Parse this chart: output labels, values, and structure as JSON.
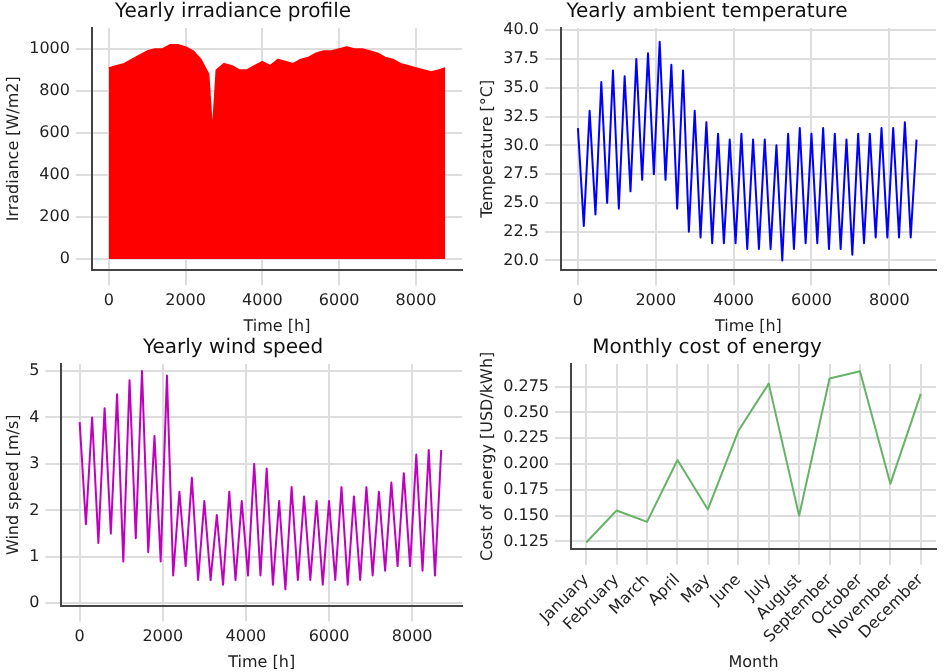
{
  "chart_data": [
    {
      "type": "area",
      "title": "Yearly irradiance profile",
      "xlabel": "Time [h]",
      "ylabel": "Irradiance [W/m2]",
      "color": "#ff0000",
      "grid": true,
      "x": [
        0,
        200,
        400,
        600,
        800,
        1000,
        1200,
        1400,
        1600,
        1800,
        2000,
        2200,
        2400,
        2600,
        2700,
        2800,
        3000,
        3200,
        3400,
        3600,
        3800,
        4000,
        4200,
        4400,
        4600,
        4800,
        5000,
        5200,
        5400,
        5600,
        5800,
        6000,
        6200,
        6400,
        6600,
        6800,
        7000,
        7200,
        7400,
        7600,
        7800,
        8000,
        8200,
        8400,
        8600,
        8760
      ],
      "values": [
        910,
        920,
        930,
        950,
        970,
        990,
        1000,
        1000,
        1020,
        1020,
        1010,
        990,
        950,
        880,
        600,
        900,
        930,
        920,
        900,
        900,
        920,
        940,
        920,
        950,
        940,
        930,
        950,
        960,
        980,
        990,
        990,
        1000,
        1010,
        1000,
        1000,
        990,
        980,
        960,
        950,
        930,
        920,
        910,
        900,
        890,
        900,
        910
      ],
      "xlim": [
        -440,
        9200
      ],
      "xticks": [
        0,
        2000,
        4000,
        6000,
        8000
      ],
      "ylim": [
        -50,
        1100
      ],
      "yticks": [
        0,
        200,
        400,
        600,
        800,
        1000
      ]
    },
    {
      "type": "line",
      "title": "Yearly ambient temperature",
      "xlabel": "Time [h]",
      "ylabel": "Temperature [°C]",
      "color": "#0000ff",
      "grid": true,
      "x": [
        0,
        150,
        300,
        450,
        600,
        750,
        900,
        1050,
        1200,
        1350,
        1500,
        1650,
        1800,
        1950,
        2100,
        2250,
        2400,
        2550,
        2700,
        2850,
        3000,
        3150,
        3300,
        3450,
        3600,
        3750,
        3900,
        4050,
        4200,
        4350,
        4500,
        4650,
        4800,
        4950,
        5100,
        5250,
        5400,
        5550,
        5700,
        5850,
        6000,
        6150,
        6300,
        6450,
        6600,
        6750,
        6900,
        7050,
        7200,
        7350,
        7500,
        7650,
        7800,
        7950,
        8100,
        8250,
        8400,
        8550,
        8700
      ],
      "values": [
        31.5,
        23,
        33,
        24,
        35.5,
        25,
        36.5,
        24.5,
        36,
        26,
        37.5,
        27,
        38,
        27.5,
        39,
        27,
        37,
        24.5,
        36.5,
        22.5,
        33,
        22,
        32,
        21.5,
        31,
        21.5,
        30.5,
        21.5,
        31,
        21,
        30.5,
        21,
        30.5,
        21,
        30,
        20,
        31,
        21,
        31.5,
        21.5,
        31,
        21.5,
        31.5,
        21,
        31,
        21,
        30.5,
        20.5,
        31,
        21.5,
        31,
        22,
        31.5,
        22,
        31.5,
        22,
        32,
        22,
        30.5
      ],
      "xlim": [
        -440,
        9200
      ],
      "xticks": [
        0,
        2000,
        4000,
        6000,
        8000
      ],
      "ylim": [
        19.2,
        40.2
      ],
      "yticks": [
        {
          "value": 20,
          "label": "20.0"
        },
        {
          "value": 22.5,
          "label": "22.5"
        },
        {
          "value": 25,
          "label": "25.0"
        },
        {
          "value": 27.5,
          "label": "27.5"
        },
        {
          "value": 30,
          "label": "30.0"
        },
        {
          "value": 32.5,
          "label": "32.5"
        },
        {
          "value": 35,
          "label": "35.0"
        },
        {
          "value": 37.5,
          "label": "37.5"
        },
        {
          "value": 40,
          "label": "40.0"
        }
      ]
    },
    {
      "type": "line",
      "title": "Yearly wind speed",
      "xlabel": "Time [h]",
      "ylabel": "Wind speed [m/s]",
      "color": "#bf00bf",
      "grid": true,
      "x": [
        0,
        150,
        300,
        450,
        600,
        750,
        900,
        1050,
        1200,
        1350,
        1500,
        1650,
        1800,
        1950,
        2100,
        2250,
        2400,
        2550,
        2700,
        2850,
        3000,
        3150,
        3300,
        3450,
        3600,
        3750,
        3900,
        4050,
        4200,
        4350,
        4500,
        4650,
        4800,
        4950,
        5100,
        5250,
        5400,
        5550,
        5700,
        5850,
        6000,
        6150,
        6300,
        6450,
        6600,
        6750,
        6900,
        7050,
        7200,
        7350,
        7500,
        7650,
        7800,
        7950,
        8100,
        8250,
        8400,
        8550,
        8700
      ],
      "values": [
        3.9,
        1.7,
        4.0,
        1.3,
        4.2,
        1.5,
        4.5,
        0.9,
        4.8,
        1.4,
        5.0,
        1.1,
        3.6,
        0.9,
        4.9,
        0.6,
        2.4,
        0.8,
        2.7,
        0.5,
        2.2,
        0.5,
        1.9,
        0.4,
        2.4,
        0.5,
        2.2,
        0.6,
        3.0,
        0.6,
        2.9,
        0.4,
        2.2,
        0.3,
        2.5,
        0.5,
        2.3,
        0.5,
        2.2,
        0.4,
        2.2,
        0.5,
        2.5,
        0.4,
        2.3,
        0.5,
        2.5,
        0.6,
        2.4,
        0.7,
        2.6,
        0.8,
        2.8,
        0.8,
        3.2,
        0.7,
        3.3,
        0.6,
        3.3
      ],
      "xlim": [
        -440,
        9200
      ],
      "xticks": [
        0,
        2000,
        4000,
        6000,
        8000
      ],
      "ylim": [
        -0.05,
        5.15
      ],
      "yticks": [
        0,
        1,
        2,
        3,
        4,
        5
      ]
    },
    {
      "type": "line",
      "title": "Monthly cost of energy",
      "xlabel": "Month",
      "ylabel": "Cost of energy [USD/kWh]",
      "color": "#66b266",
      "grid": true,
      "categories": [
        "January",
        "February",
        "March",
        "April",
        "May",
        "June",
        "July",
        "August",
        "September",
        "October",
        "November",
        "December"
      ],
      "values": [
        0.124,
        0.155,
        0.144,
        0.204,
        0.156,
        0.232,
        0.278,
        0.15,
        0.283,
        0.29,
        0.181,
        0.268
      ],
      "ylim": [
        0.118,
        0.297
      ],
      "yticks": [
        {
          "value": 0.125,
          "label": "0.125"
        },
        {
          "value": 0.15,
          "label": "0.150"
        },
        {
          "value": 0.175,
          "label": "0.175"
        },
        {
          "value": 0.2,
          "label": "0.200"
        },
        {
          "value": 0.225,
          "label": "0.225"
        },
        {
          "value": 0.25,
          "label": "0.250"
        },
        {
          "value": 0.275,
          "label": "0.275"
        }
      ]
    }
  ]
}
